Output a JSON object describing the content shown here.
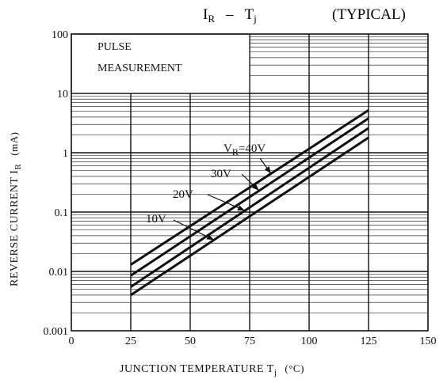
{
  "chart_data": {
    "type": "line",
    "title_main": "I",
    "title_main_sub": "R",
    "title_dash": "–",
    "title_second": "T",
    "title_second_sub": "j",
    "title_note": "(TYPICAL)",
    "xlabel_main": "JUNCTION TEMPERATURE  T",
    "xlabel_sub": "j",
    "xlabel_unit": "(°C)",
    "ylabel_main": "REVERSE CURRENT  I",
    "ylabel_sub": "R",
    "ylabel_unit": "(mA)",
    "x_scale": "linear",
    "y_scale": "log",
    "xlim": [
      0,
      150
    ],
    "ylim": [
      0.001,
      100
    ],
    "x_ticks": [
      "0",
      "25",
      "50",
      "75",
      "100",
      "125",
      "150"
    ],
    "y_ticks": [
      "0.001",
      "0.01",
      "0.1",
      "1",
      "10",
      "100"
    ],
    "grid": true,
    "annotation_line1": "PULSE",
    "annotation_line2": "MEASUREMENT",
    "series": [
      {
        "name": "V_R=40V",
        "label_prefix": "V",
        "label_sub": "R",
        "label_suffix": "=40V",
        "x": [
          25,
          125
        ],
        "y": [
          0.013,
          5.2
        ]
      },
      {
        "name": "30V",
        "label_prefix": "30V",
        "label_sub": "",
        "label_suffix": "",
        "x": [
          25,
          125
        ],
        "y": [
          0.0085,
          3.8
        ]
      },
      {
        "name": "20V",
        "label_prefix": "20V",
        "label_sub": "",
        "label_suffix": "",
        "x": [
          25,
          125
        ],
        "y": [
          0.0055,
          2.6
        ]
      },
      {
        "name": "10V",
        "label_prefix": "10V",
        "label_sub": "",
        "label_suffix": "",
        "x": [
          25,
          125
        ],
        "y": [
          0.004,
          1.8
        ]
      }
    ]
  }
}
